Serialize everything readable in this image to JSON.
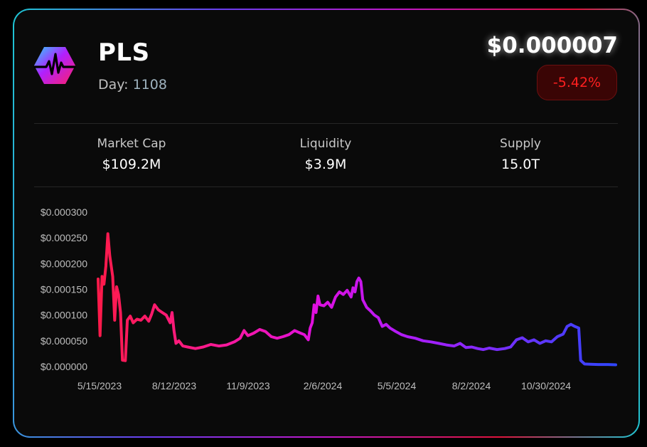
{
  "token": {
    "symbol": "PLS",
    "day_label": "Day:",
    "day_value": "1108",
    "price": "$0.000007",
    "change": "-5.42%",
    "logo_icon": "pulsechain-logo-icon"
  },
  "stats": [
    {
      "label": "Market Cap",
      "value": "$109.2M"
    },
    {
      "label": "Liquidity",
      "value": "$3.9M"
    },
    {
      "label": "Supply",
      "value": "15.0T"
    }
  ],
  "colors": {
    "accent_red": "#ff1a4a",
    "accent_magenta": "#e010e0",
    "accent_blue": "#2f46ff",
    "negative": "#ff2020"
  },
  "chart_data": {
    "type": "line",
    "title": "",
    "xlabel": "",
    "ylabel": "",
    "ylim": [
      0,
      0.0003
    ],
    "y_ticks": [
      "$0.000000",
      "$0.000050",
      "$0.000100",
      "$0.000150",
      "$0.000200",
      "$0.000250",
      "$0.000300"
    ],
    "x_ticks": [
      "5/15/2023",
      "8/12/2023",
      "11/9/2023",
      "2/6/2024",
      "5/5/2024",
      "8/2/2024",
      "10/30/2024"
    ],
    "grid": false,
    "series": [
      {
        "values": [
          [
            0,
            0.00017
          ],
          [
            2,
            6e-05
          ],
          [
            4,
            0.000175
          ],
          [
            6,
            0.00016
          ],
          [
            8,
            0.000195
          ],
          [
            10,
            0.000258
          ],
          [
            12,
            0.000215
          ],
          [
            15,
            0.000175
          ],
          [
            17,
            9e-05
          ],
          [
            19,
            0.000155
          ],
          [
            21,
            0.00014
          ],
          [
            23,
            0.000105
          ],
          [
            25,
            1.25e-05
          ],
          [
            28,
            1.15e-05
          ],
          [
            30,
            9e-05
          ],
          [
            33,
            9.8e-05
          ],
          [
            36,
            8.5e-05
          ],
          [
            40,
            9.2e-05
          ],
          [
            44,
            9e-05
          ],
          [
            48,
            9.8e-05
          ],
          [
            52,
            8.8e-05
          ],
          [
            55,
            0.000102
          ],
          [
            58,
            0.00012
          ],
          [
            62,
            0.00011
          ],
          [
            66,
            0.000105
          ],
          [
            70,
            0.0001
          ],
          [
            74,
            8.5e-05
          ],
          [
            76,
            0.000105
          ],
          [
            78,
            7e-05
          ],
          [
            80,
            4.5e-05
          ],
          [
            83,
            5e-05
          ],
          [
            87,
            4e-05
          ],
          [
            92,
            3.8e-05
          ],
          [
            100,
            3.5e-05
          ],
          [
            108,
            3.8e-05
          ],
          [
            116,
            4.3e-05
          ],
          [
            124,
            4e-05
          ],
          [
            132,
            4.2e-05
          ],
          [
            140,
            4.8e-05
          ],
          [
            146,
            5.5e-05
          ],
          [
            150,
            7e-05
          ],
          [
            154,
            6e-05
          ],
          [
            160,
            6.5e-05
          ],
          [
            166,
            7.2e-05
          ],
          [
            172,
            6.8e-05
          ],
          [
            178,
            5.8e-05
          ],
          [
            184,
            5.5e-05
          ],
          [
            190,
            5.8e-05
          ],
          [
            196,
            6.2e-05
          ],
          [
            202,
            7e-05
          ],
          [
            208,
            6.5e-05
          ],
          [
            212,
            6.2e-05
          ],
          [
            216,
            5.2e-05
          ],
          [
            218,
            7.5e-05
          ],
          [
            220,
            8.5e-05
          ],
          [
            222,
            0.00012
          ],
          [
            224,
            0.000105
          ],
          [
            226,
            0.000137
          ],
          [
            228,
            0.00012
          ],
          [
            232,
            0.000118
          ],
          [
            236,
            0.000125
          ],
          [
            240,
            0.000115
          ],
          [
            244,
            0.000135
          ],
          [
            248,
            0.000145
          ],
          [
            252,
            0.00014
          ],
          [
            256,
            0.000148
          ],
          [
            260,
            0.000135
          ],
          [
            262,
            0.000153
          ],
          [
            264,
            0.000145
          ],
          [
            266,
            0.000165
          ],
          [
            268,
            0.000172
          ],
          [
            270,
            0.000165
          ],
          [
            272,
            0.00013
          ],
          [
            276,
            0.000115
          ],
          [
            280,
            0.000108
          ],
          [
            284,
            0.0001
          ],
          [
            288,
            9.5e-05
          ],
          [
            292,
            7.8e-05
          ],
          [
            296,
            8.2e-05
          ],
          [
            300,
            7.5e-05
          ],
          [
            306,
            6.8e-05
          ],
          [
            312,
            6.2e-05
          ],
          [
            318,
            5.8e-05
          ],
          [
            326,
            5.5e-05
          ],
          [
            334,
            5e-05
          ],
          [
            342,
            4.8e-05
          ],
          [
            350,
            4.5e-05
          ],
          [
            358,
            4.2e-05
          ],
          [
            366,
            4e-05
          ],
          [
            372,
            4.5e-05
          ],
          [
            378,
            3.7e-05
          ],
          [
            384,
            3.8e-05
          ],
          [
            390,
            3.5e-05
          ],
          [
            396,
            3.3e-05
          ],
          [
            402,
            3.6e-05
          ],
          [
            410,
            3.3e-05
          ],
          [
            418,
            3.5e-05
          ],
          [
            424,
            3.8e-05
          ],
          [
            430,
            5.2e-05
          ],
          [
            436,
            5.6e-05
          ],
          [
            442,
            4.8e-05
          ],
          [
            448,
            5.2e-05
          ],
          [
            454,
            4.5e-05
          ],
          [
            460,
            5e-05
          ],
          [
            466,
            4.8e-05
          ],
          [
            472,
            5.8e-05
          ],
          [
            478,
            6.3e-05
          ],
          [
            482,
            7.8e-05
          ],
          [
            486,
            8.2e-05
          ],
          [
            490,
            7.8e-05
          ],
          [
            494,
            7.5e-05
          ],
          [
            496,
            1.2e-05
          ],
          [
            500,
            5e-06
          ],
          [
            506,
            4.5e-06
          ],
          [
            514,
            4e-06
          ],
          [
            524,
            4e-06
          ],
          [
            532,
            3.5e-06
          ]
        ]
      }
    ]
  }
}
